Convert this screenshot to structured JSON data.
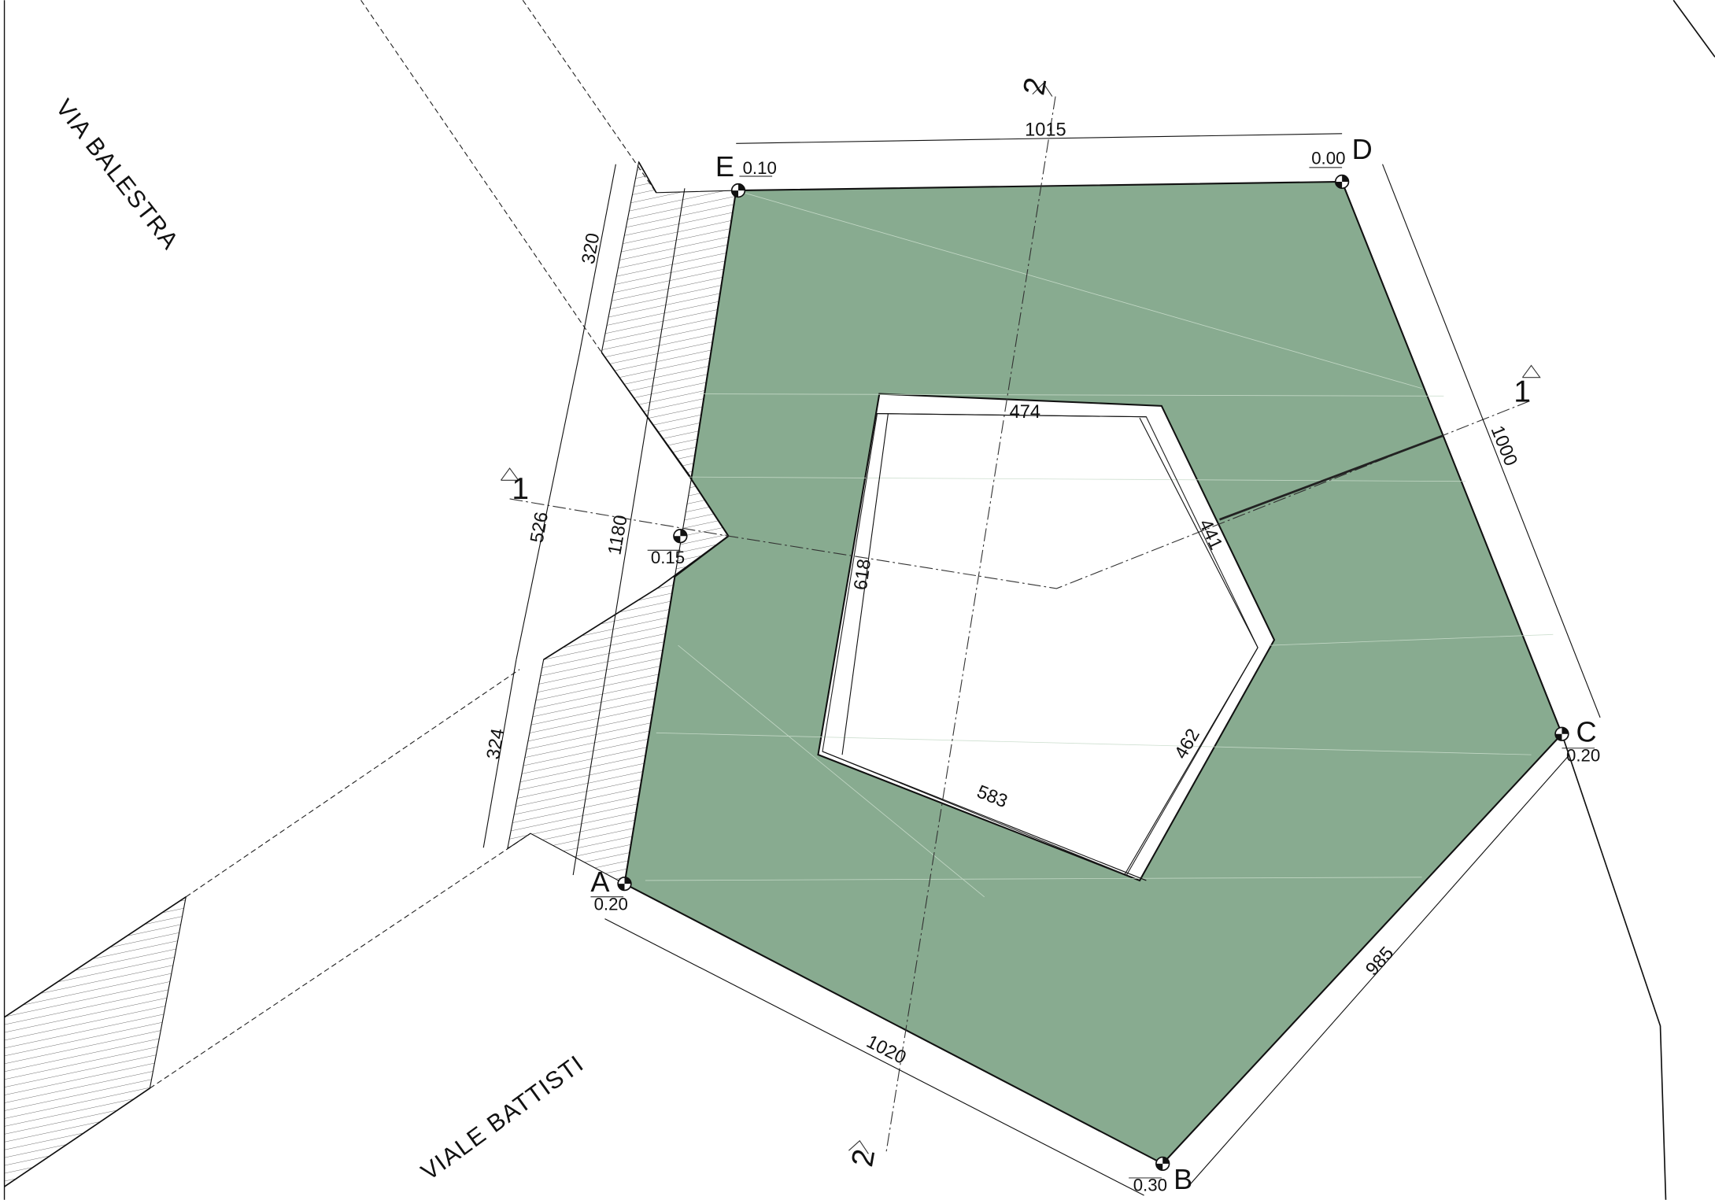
{
  "streets": {
    "via_balestra": "VIA BALESTRA",
    "viale_battisti": "VIALE BATTISTI"
  },
  "vertices": {
    "a": "A",
    "b": "B",
    "c": "C",
    "d": "D",
    "e": "E"
  },
  "elevations": {
    "a": "0.20",
    "b": "0.30",
    "c": "0.20",
    "d": "0.00",
    "e": "0.10",
    "notch": "0.15"
  },
  "dimensions": {
    "outer_top": "1015",
    "outer_right": "1000",
    "outer_bottom_right": "985",
    "outer_bottom": "1020",
    "outer_left": "1180",
    "left_upper": "320",
    "left_middle": "526",
    "left_lower": "324",
    "inner_top": "474",
    "inner_right_upper": "441",
    "inner_right_lower": "462",
    "inner_bottom": "583",
    "inner_left": "618"
  },
  "section_markers": {
    "s1_left": "1",
    "s1_right": "1",
    "s2_top": "2",
    "s2_bottom": "2"
  },
  "colors": {
    "plaza_fill": "#88ab90",
    "line": "#111111"
  },
  "icons": {
    "elevation_marker": "elevation-benchmark-icon",
    "section_marker": "section-arrow-icon"
  }
}
